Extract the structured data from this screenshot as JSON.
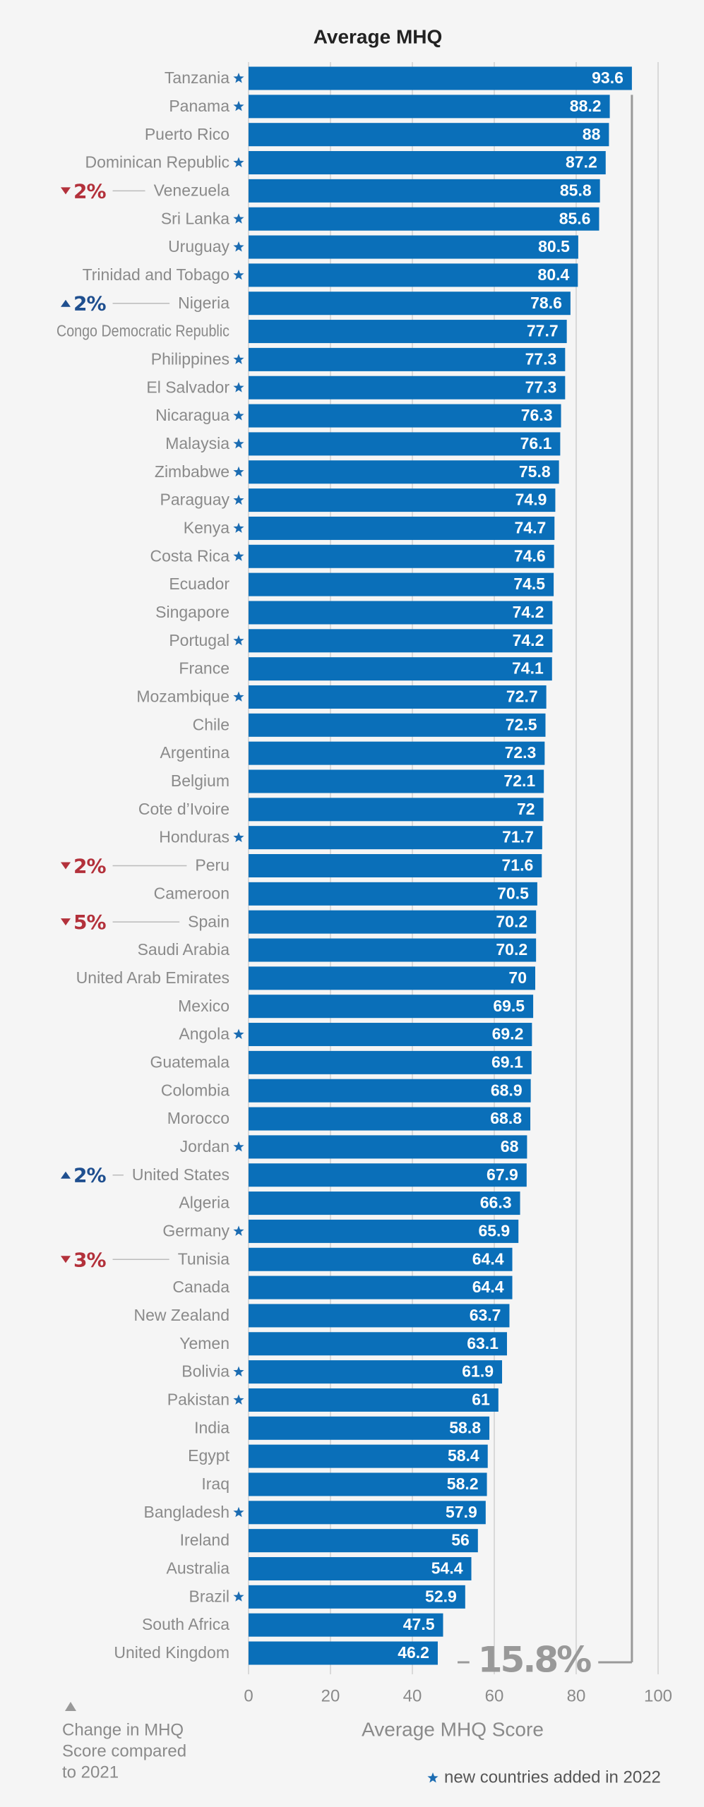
{
  "chart_data": {
    "type": "bar",
    "orientation": "horizontal",
    "title": "Average MHQ",
    "categories": [
      "Tanzania",
      "Panama",
      "Puerto Rico",
      "Dominican Republic",
      "Venezuela",
      "Sri Lanka",
      "Uruguay",
      "Trinidad and Tobago",
      "Nigeria",
      "Congo Democratic Republic",
      "Philippines",
      "El Salvador",
      "Nicaragua",
      "Malaysia",
      "Zimbabwe",
      "Paraguay",
      "Kenya",
      "Costa Rica",
      "Ecuador",
      "Singapore",
      "Portugal",
      "France",
      "Mozambique",
      "Chile",
      "Argentina",
      "Belgium",
      "Cote d’Ivoire",
      "Honduras",
      "Peru",
      "Cameroon",
      "Spain",
      "Saudi Arabia",
      "United Arab Emirates",
      "Mexico",
      "Angola",
      "Guatemala",
      "Colombia",
      "Morocco",
      "Jordan",
      "United States",
      "Algeria",
      "Germany",
      "Tunisia",
      "Canada",
      "New Zealand",
      "Yemen",
      "Bolivia",
      "Pakistan",
      "India",
      "Egypt",
      "Iraq",
      "Bangladesh",
      "Ireland",
      "Australia",
      "Brazil",
      "South Africa",
      "United Kingdom"
    ],
    "values": [
      93.6,
      88.2,
      88,
      87.2,
      85.8,
      85.6,
      80.5,
      80.4,
      78.6,
      77.7,
      77.3,
      77.3,
      76.3,
      76.1,
      75.8,
      74.9,
      74.7,
      74.6,
      74.5,
      74.2,
      74.2,
      74.1,
      72.7,
      72.5,
      72.3,
      72.1,
      72,
      71.7,
      71.6,
      70.5,
      70.2,
      70.2,
      70,
      69.5,
      69.2,
      69.1,
      68.9,
      68.8,
      68,
      67.9,
      66.3,
      65.9,
      64.4,
      64.4,
      63.7,
      63.1,
      61.9,
      61,
      58.8,
      58.4,
      58.2,
      57.9,
      56,
      54.4,
      52.9,
      47.5,
      46.2
    ],
    "new_in_2022": [
      true,
      true,
      false,
      true,
      false,
      true,
      true,
      true,
      false,
      false,
      true,
      true,
      true,
      true,
      true,
      true,
      true,
      true,
      false,
      false,
      true,
      false,
      true,
      false,
      false,
      false,
      false,
      true,
      false,
      false,
      false,
      false,
      false,
      false,
      true,
      false,
      false,
      false,
      true,
      false,
      false,
      true,
      false,
      false,
      false,
      false,
      true,
      true,
      false,
      false,
      false,
      true,
      false,
      false,
      true,
      false,
      false
    ],
    "changes": [
      null,
      null,
      null,
      null,
      -2,
      null,
      null,
      null,
      2,
      null,
      null,
      null,
      null,
      null,
      null,
      null,
      null,
      null,
      null,
      null,
      null,
      null,
      null,
      null,
      null,
      null,
      null,
      null,
      -2,
      null,
      -5,
      null,
      null,
      null,
      null,
      null,
      null,
      null,
      null,
      2,
      null,
      null,
      -3,
      null,
      null,
      null,
      null,
      null,
      null,
      null,
      null,
      null,
      null,
      null,
      null,
      null,
      null
    ],
    "change_labels": [
      null,
      null,
      null,
      null,
      "2%",
      null,
      null,
      null,
      "2%",
      null,
      null,
      null,
      null,
      null,
      null,
      null,
      null,
      null,
      null,
      null,
      null,
      null,
      null,
      null,
      null,
      null,
      null,
      null,
      "2%",
      null,
      "5%",
      null,
      null,
      null,
      null,
      null,
      null,
      null,
      null,
      "2%",
      null,
      null,
      "3%",
      null,
      null,
      null,
      null,
      null,
      null,
      null,
      null,
      null,
      null,
      null,
      null,
      null,
      null
    ],
    "color": "#0a6fb9",
    "star_color": "#1b6cb2",
    "up_color": "#1f4f8f",
    "down_color": "#b3313b",
    "xlim": [
      0,
      100
    ],
    "xticks": [
      0,
      20,
      40,
      60,
      80,
      100
    ],
    "grid": true,
    "xlabel": "Average MHQ Score",
    "annotation": "15.8%",
    "change_legend": [
      "Change in MHQ",
      "Score compared",
      "to 2021"
    ],
    "footnote": "new countries added in 2022"
  }
}
